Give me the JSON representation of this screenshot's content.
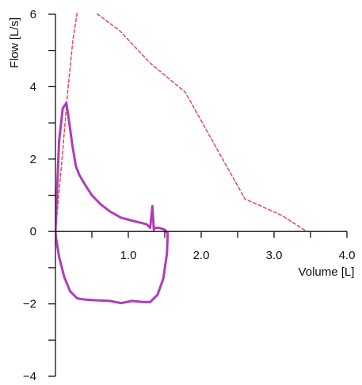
{
  "chart_data": {
    "type": "line",
    "title": "",
    "xlabel": "Volume [L]",
    "ylabel": "Flow [L/s]",
    "xlim": [
      0,
      4.0
    ],
    "ylim": [
      -4,
      6
    ],
    "x_ticks": [
      0,
      0.5,
      1.0,
      1.5,
      2.0,
      2.5,
      3.0,
      3.5,
      4.0
    ],
    "x_tick_labels": [
      {
        "value": 1.0,
        "label": "1.0"
      },
      {
        "value": 2.0,
        "label": "2.0"
      },
      {
        "value": 3.0,
        "label": "3.0"
      },
      {
        "value": 4.0,
        "label": "4.0"
      }
    ],
    "y_ticks": [
      -4,
      -3,
      -2,
      -1,
      0,
      1,
      2,
      3,
      4,
      5,
      6
    ],
    "y_tick_labels": [
      {
        "value": 6,
        "label": "6"
      },
      {
        "value": 4,
        "label": "4"
      },
      {
        "value": 2,
        "label": "2"
      },
      {
        "value": 0,
        "label": "0"
      },
      {
        "value": -2,
        "label": "−2"
      },
      {
        "value": -4,
        "label": "−4"
      }
    ],
    "grid": false,
    "legend": "none",
    "series": [
      {
        "style": "dashed",
        "color": "#e8455a",
        "x": [
          0.0,
          0.09,
          0.17,
          0.24,
          0.31,
          0.43,
          0.58,
          0.88,
          1.3,
          1.78,
          2.6,
          3.1,
          3.45
        ],
        "y": [
          0.0,
          2.0,
          3.9,
          5.3,
          6.2,
          6.6,
          6.0,
          5.55,
          4.65,
          3.85,
          0.9,
          0.45,
          0.0
        ]
      },
      {
        "style": "solid",
        "color": "#b03cb8",
        "x": [
          0.0,
          0.02,
          0.05,
          0.1,
          0.15,
          0.19,
          0.23,
          0.28,
          0.33,
          0.42,
          0.5,
          0.62,
          0.75,
          0.9,
          1.05,
          1.15,
          1.25,
          1.3,
          1.33,
          1.35,
          1.37,
          1.42,
          1.5,
          1.54,
          1.53,
          1.48,
          1.4,
          1.3,
          1.2,
          1.05,
          0.9,
          0.75,
          0.55,
          0.4,
          0.3,
          0.2,
          0.12,
          0.05,
          0.01,
          0.0
        ],
        "y": [
          0.0,
          1.0,
          2.5,
          3.4,
          3.55,
          3.0,
          2.4,
          1.8,
          1.55,
          1.25,
          1.0,
          0.75,
          0.55,
          0.38,
          0.3,
          0.25,
          0.2,
          0.1,
          0.7,
          0.05,
          0.1,
          0.1,
          0.05,
          -0.05,
          -0.6,
          -1.3,
          -1.75,
          -1.95,
          -1.95,
          -1.92,
          -1.98,
          -1.92,
          -1.9,
          -1.88,
          -1.85,
          -1.65,
          -1.25,
          -0.7,
          -0.2,
          0.0
        ]
      }
    ]
  }
}
